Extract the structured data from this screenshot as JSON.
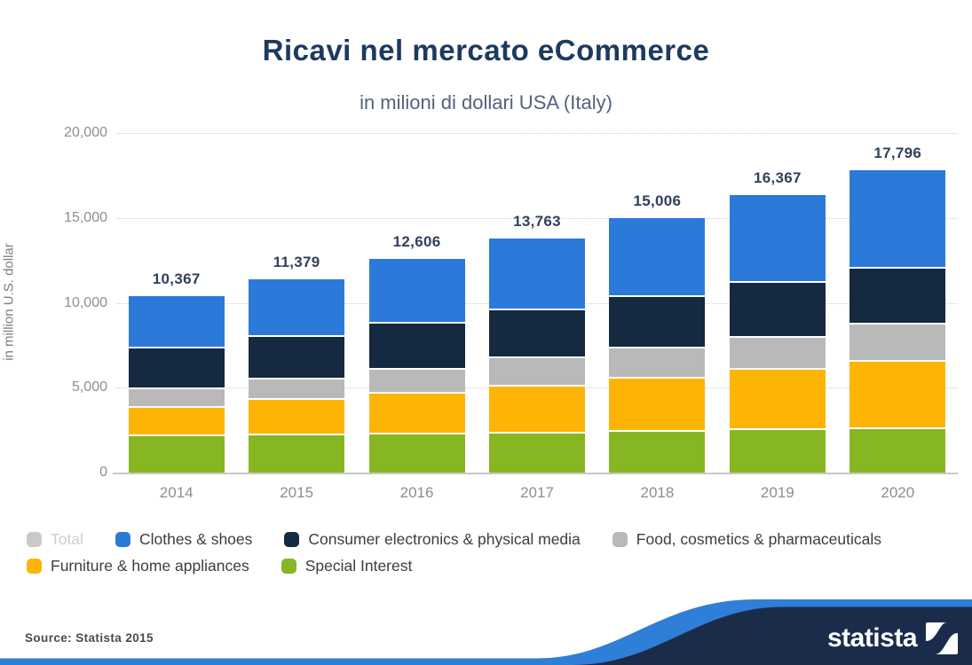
{
  "header": {
    "title": "Ricavi nel mercato eCommerce",
    "subtitle": "in milioni di dollari USA (Italy)"
  },
  "footer": {
    "source": "Source: Statista 2015",
    "brand": "statista"
  },
  "colors": {
    "title": "#1d3a5f",
    "accent_blue": "#2f7ed8",
    "brand_navy": "#1b2c4a",
    "grid": "#cfcfcf"
  },
  "chart_data": {
    "type": "bar",
    "stacked": true,
    "title": "Ricavi nel mercato eCommerce",
    "subtitle": "in milioni di dollari USA (Italy)",
    "xlabel": "",
    "ylabel": "in million U.S. dollar",
    "ylim": [
      0,
      20000
    ],
    "grid": "horizontal dotted",
    "legend_position": "bottom-left, two rows",
    "categories": [
      "2014",
      "2015",
      "2016",
      "2017",
      "2018",
      "2019",
      "2020"
    ],
    "totals": [
      10367,
      11379,
      12606,
      13763,
      15006,
      16367,
      17796
    ],
    "totals_formatted": [
      "10,367",
      "11,379",
      "12,606",
      "13,763",
      "15,006",
      "16,367",
      "17,796"
    ],
    "yticks": [
      {
        "value": 0,
        "label": "0"
      },
      {
        "value": 5000,
        "label": "5,000"
      },
      {
        "value": 10000,
        "label": "10,000"
      },
      {
        "value": 15000,
        "label": "15,000"
      },
      {
        "value": 20000,
        "label": "20,000"
      }
    ],
    "series_note": "values estimated from pixel heights; stack order bottom to top",
    "series": [
      {
        "name": "Special Interest",
        "color": "#86b723",
        "values": [
          2236,
          2272,
          2356,
          2409,
          2498,
          2587,
          2650
        ]
      },
      {
        "name": "Furniture & home appliances",
        "color": "#feb405",
        "values": [
          1691,
          2095,
          2409,
          2775,
          3141,
          3576,
          3980
        ]
      },
      {
        "name": "Food, cosmetics & pharmaceuticals",
        "color": "#b9b9b9",
        "values": [
          1100,
          1236,
          1413,
          1644,
          1781,
          1869,
          2180
        ]
      },
      {
        "name": "Consumer electronics & physical media",
        "color": "#152940",
        "values": [
          2393,
          2513,
          2723,
          2827,
          3020,
          3226,
          3290
        ]
      },
      {
        "name": "Clothes & shoes",
        "color": "#2b7ada",
        "values": [
          2947,
          3263,
          3705,
          4108,
          4566,
          5109,
          5696
        ]
      }
    ],
    "legend": [
      {
        "label": "Total",
        "color": "#c9c9c9",
        "disabled": true
      },
      {
        "label": "Clothes & shoes",
        "color": "#2b7ada",
        "disabled": false
      },
      {
        "label": "Consumer electronics & physical media",
        "color": "#152940",
        "disabled": false
      },
      {
        "label": "Food, cosmetics & pharmaceuticals",
        "color": "#b9b9b9",
        "disabled": false
      },
      {
        "label": "Furniture & home appliances",
        "color": "#feb405",
        "disabled": false
      },
      {
        "label": "Special Interest",
        "color": "#86b723",
        "disabled": false
      }
    ]
  }
}
